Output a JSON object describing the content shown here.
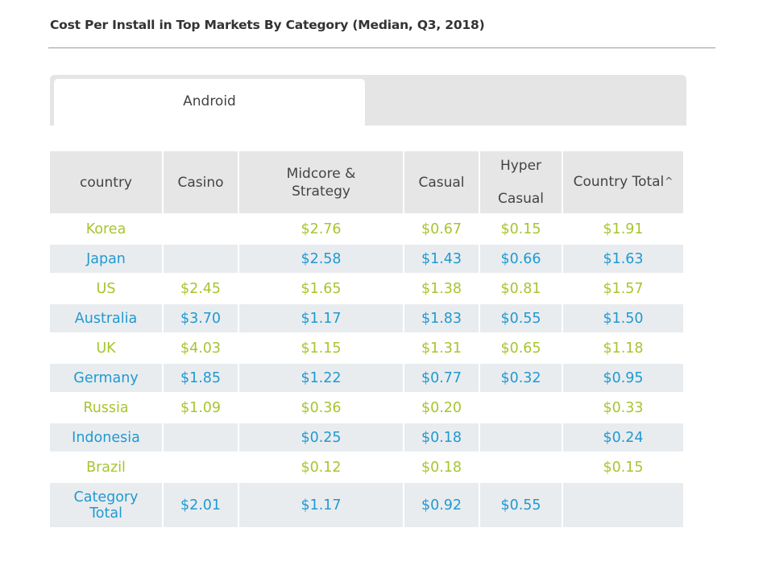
{
  "title": "Cost Per Install in Top Markets By Category (Median, Q3, 2018)",
  "tabs": [
    {
      "label": "Android",
      "active": true
    }
  ],
  "colors": {
    "green_text": "#a7c52f",
    "blue_text": "#1f9ad1",
    "header_bg": "#e6e6e6",
    "stripe_bg": "#e9ecef"
  },
  "table": {
    "headers": {
      "country": "country",
      "casino": "Casino",
      "midcore_line1": "Midcore &",
      "midcore_line2": "Strategy",
      "casual": "Casual",
      "hyper_line1": "Hyper",
      "hyper_line2": "Casual",
      "country_total": "Country Total",
      "sort_icon": "^"
    },
    "rows": [
      {
        "country": "Korea",
        "casino": "",
        "midcore": "$2.76",
        "casual": "$0.67",
        "hyper": "$0.15",
        "total": "$1.91"
      },
      {
        "country": "Japan",
        "casino": "",
        "midcore": "$2.58",
        "casual": "$1.43",
        "hyper": "$0.66",
        "total": "$1.63"
      },
      {
        "country": "US",
        "casino": "$2.45",
        "midcore": "$1.65",
        "casual": "$1.38",
        "hyper": "$0.81",
        "total": "$1.57"
      },
      {
        "country": "Australia",
        "casino": "$3.70",
        "midcore": "$1.17",
        "casual": "$1.83",
        "hyper": "$0.55",
        "total": "$1.50"
      },
      {
        "country": "UK",
        "casino": "$4.03",
        "midcore": "$1.15",
        "casual": "$1.31",
        "hyper": "$0.65",
        "total": "$1.18"
      },
      {
        "country": "Germany",
        "casino": "$1.85",
        "midcore": "$1.22",
        "casual": "$0.77",
        "hyper": "$0.32",
        "total": "$0.95"
      },
      {
        "country": "Russia",
        "casino": "$1.09",
        "midcore": "$0.36",
        "casual": "$0.20",
        "hyper": "",
        "total": "$0.33"
      },
      {
        "country": "Indonesia",
        "casino": "",
        "midcore": "$0.25",
        "casual": "$0.18",
        "hyper": "",
        "total": "$0.24"
      },
      {
        "country": "Brazil",
        "casino": "",
        "midcore": "$0.12",
        "casual": "$0.18",
        "hyper": "",
        "total": "$0.15"
      }
    ],
    "total_row": {
      "label_line1": "Category",
      "label_line2": "Total",
      "casino": "$2.01",
      "midcore": "$1.17",
      "casual": "$0.92",
      "hyper": "$0.55",
      "total": ""
    }
  }
}
